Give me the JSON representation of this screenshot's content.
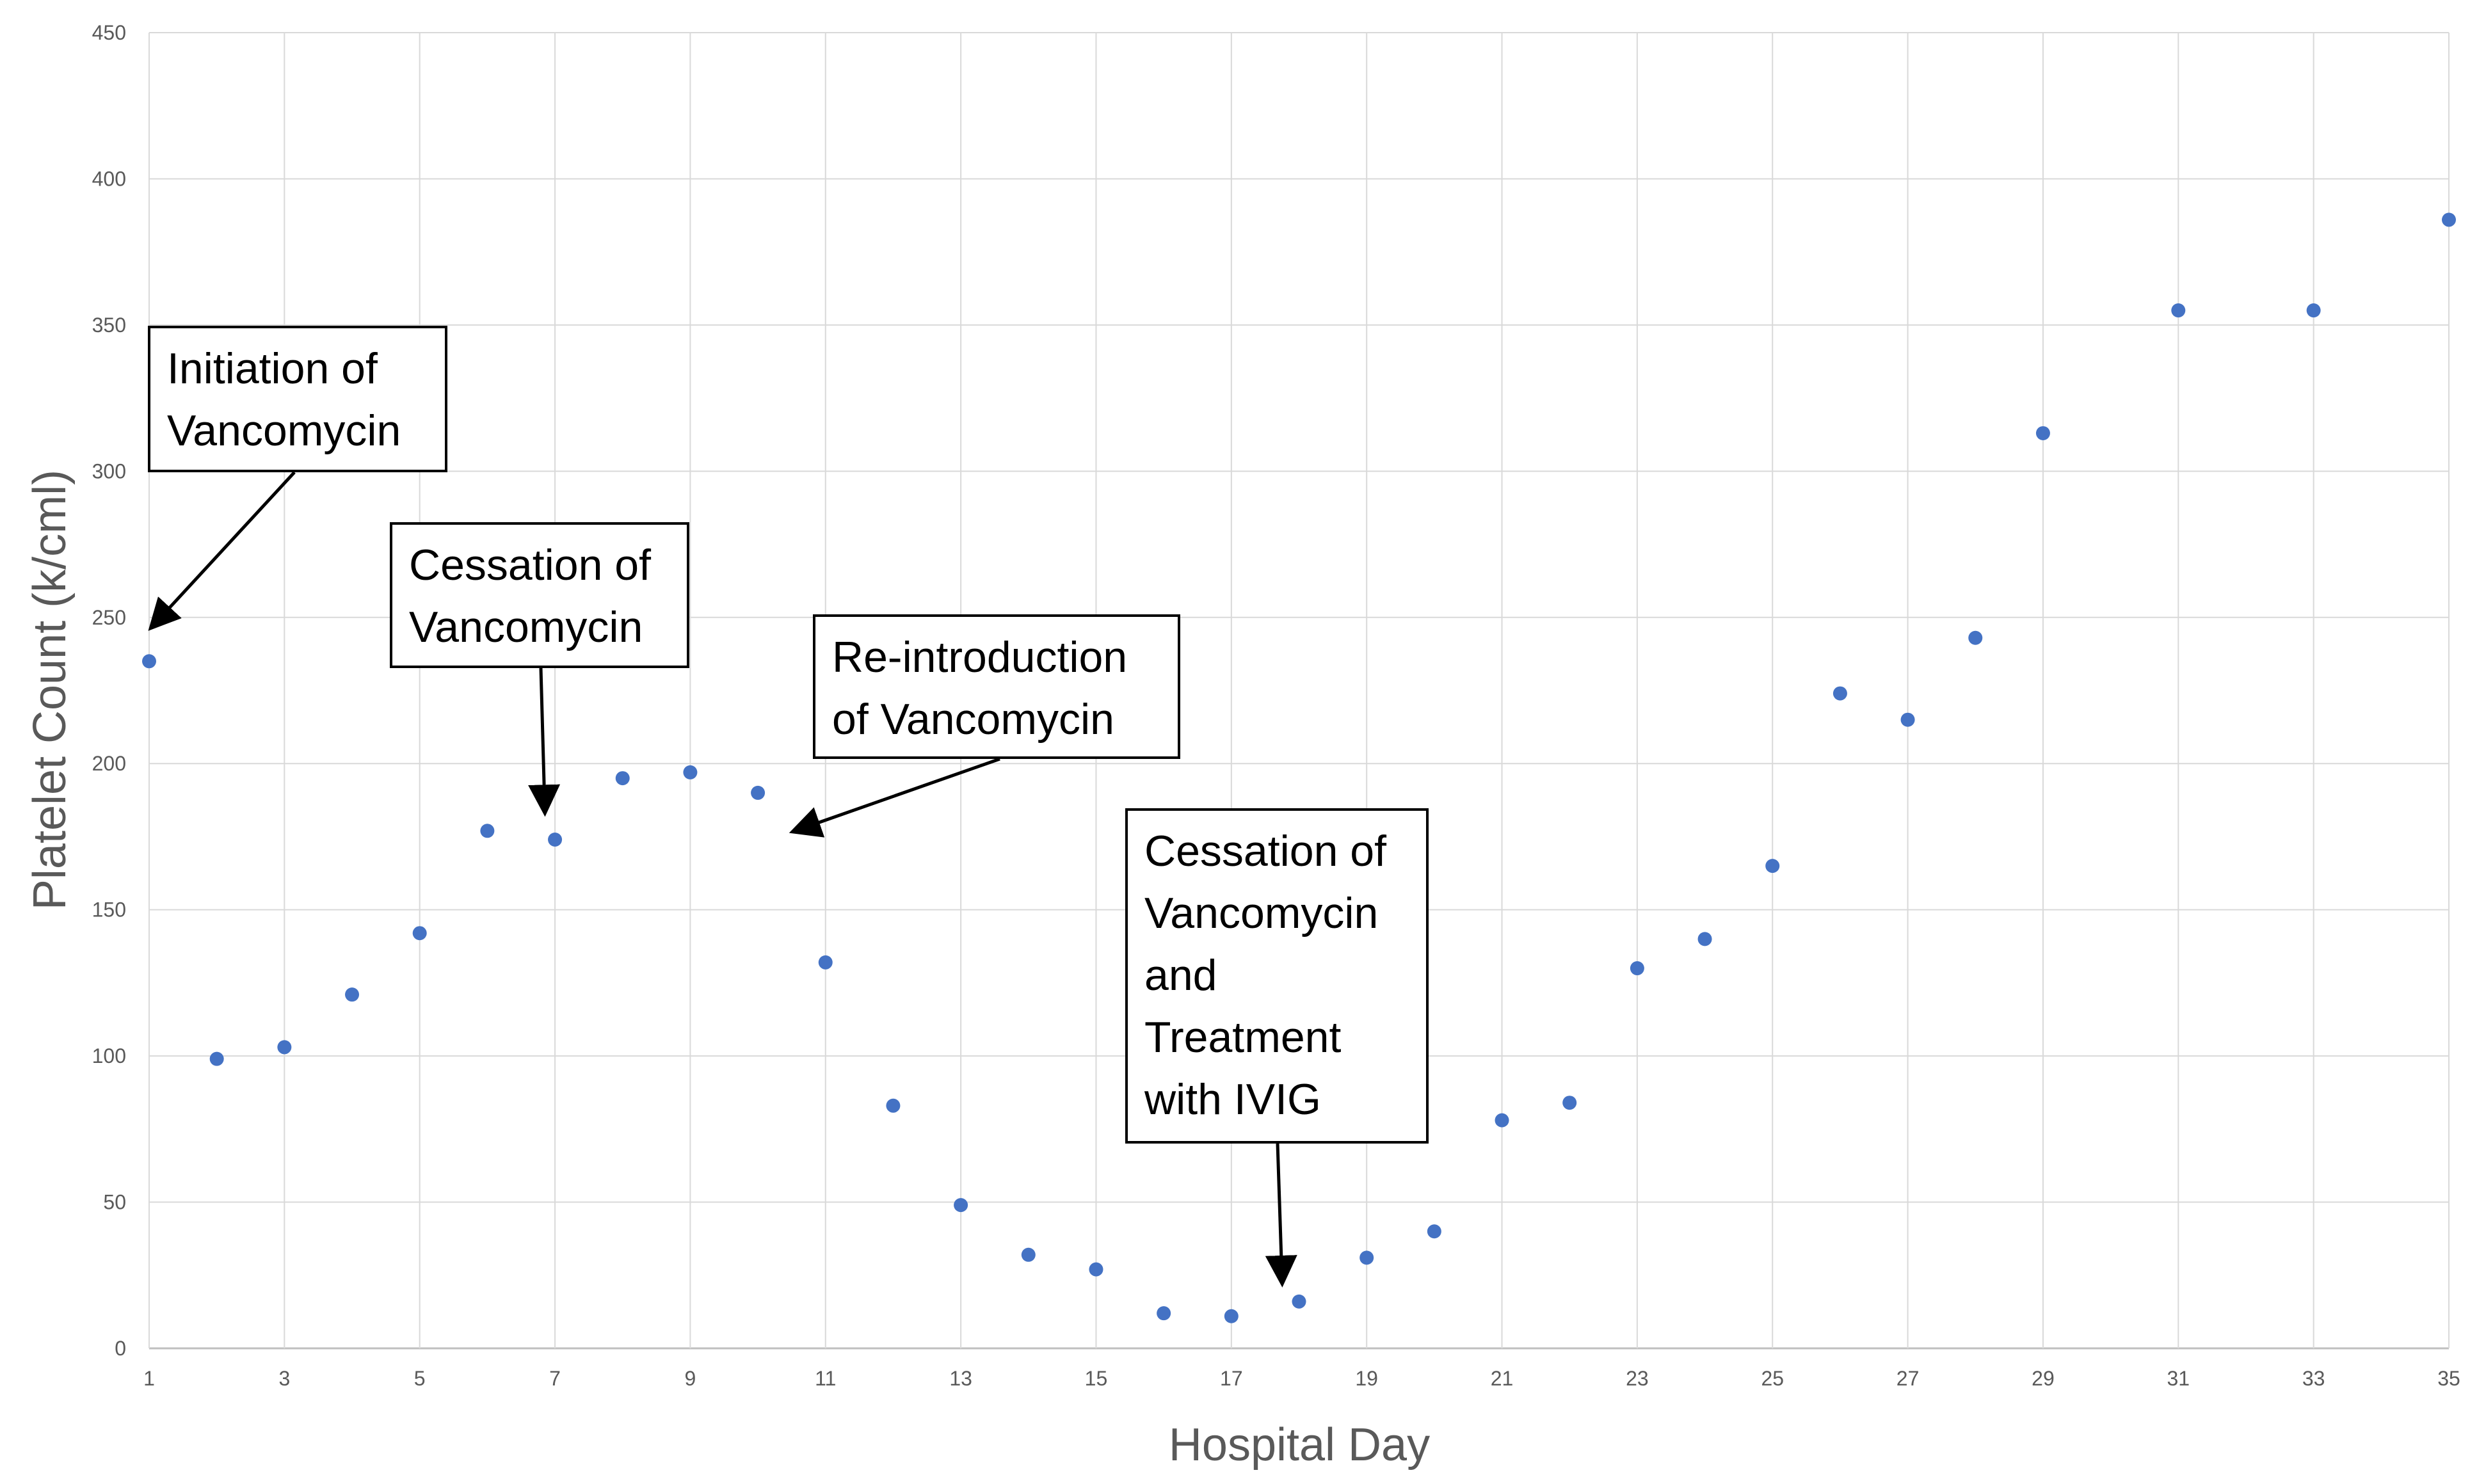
{
  "chart_data": {
    "type": "scatter",
    "title": "",
    "xlabel": "Hospital Day",
    "ylabel": "Platelet Count (k/cml)",
    "xlim": [
      1,
      35
    ],
    "ylim": [
      0,
      450
    ],
    "x_ticks": [
      1,
      3,
      5,
      7,
      9,
      11,
      13,
      15,
      17,
      19,
      21,
      23,
      25,
      27,
      29,
      31,
      33,
      35
    ],
    "y_ticks": [
      0,
      50,
      100,
      150,
      200,
      250,
      300,
      350,
      400,
      450
    ],
    "grid": true,
    "legend": "none",
    "marker_color": "#4472C4",
    "series": [
      {
        "name": "Platelet Count",
        "x": [
          1,
          2,
          3,
          4,
          5,
          6,
          7,
          8,
          9,
          10,
          11,
          12,
          13,
          14,
          15,
          16,
          17,
          18,
          19,
          20,
          21,
          22,
          23,
          24,
          25,
          26,
          27,
          28,
          29,
          31,
          33,
          35
        ],
        "y": [
          235,
          99,
          103,
          121,
          142,
          177,
          174,
          195,
          197,
          190,
          132,
          83,
          49,
          32,
          27,
          12,
          11,
          16,
          31,
          40,
          78,
          84,
          130,
          140,
          165,
          224,
          215,
          243,
          313,
          355,
          355,
          386
        ]
      }
    ],
    "annotations": [
      {
        "lines": [
          "Initiation of",
          "Vancomycin"
        ],
        "arrow_to": {
          "x": 1.05,
          "y": 247
        }
      },
      {
        "lines": [
          "Cessation of",
          "Vancomycin"
        ],
        "arrow_to": {
          "x": 6.85,
          "y": 184
        }
      },
      {
        "lines": [
          "Re-introduction",
          "of Vancomycin"
        ],
        "arrow_to": {
          "x": 10.55,
          "y": 177
        }
      },
      {
        "lines": [
          "Cessation of",
          "Vancomycin",
          "and",
          "Treatment",
          "with IVIG"
        ],
        "arrow_to": {
          "x": 17.75,
          "y": 23
        }
      }
    ]
  }
}
